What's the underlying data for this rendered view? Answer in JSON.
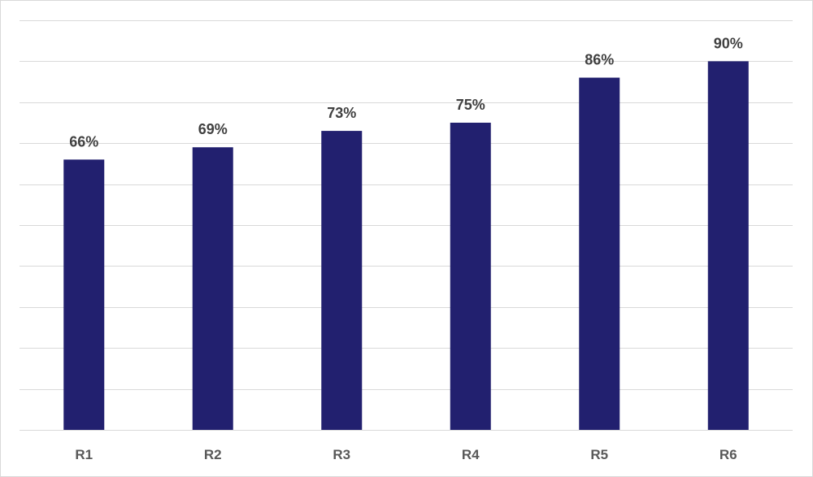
{
  "chart_data": {
    "type": "bar",
    "title": "",
    "xlabel": "",
    "ylabel": "",
    "categories": [
      "R1",
      "R2",
      "R3",
      "R4",
      "R5",
      "R6"
    ],
    "values": [
      66,
      69,
      73,
      75,
      86,
      90
    ],
    "data_labels": [
      "66%",
      "69%",
      "73%",
      "75%",
      "86%",
      "90%"
    ],
    "value_unit": "%",
    "ylim": [
      0,
      100
    ],
    "y_gridline_step": 10,
    "y_tick_labels_shown": false,
    "grid": true,
    "legend": "none",
    "colors": {
      "bar": "#22206F",
      "grid": "#D9D9D9",
      "data_label": "#404040",
      "tick_label": "#595959"
    }
  }
}
